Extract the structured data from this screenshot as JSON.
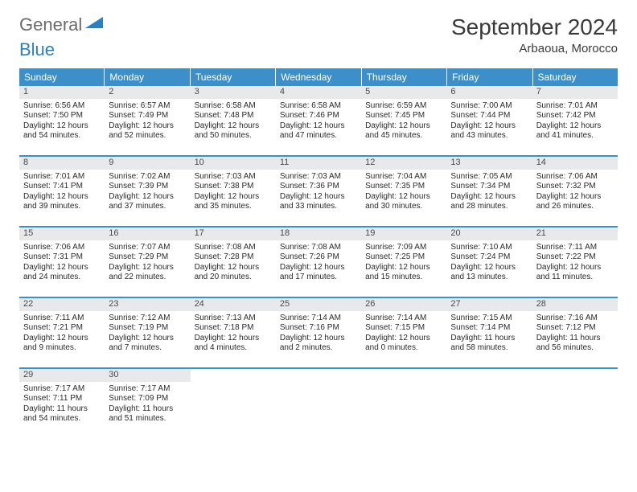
{
  "brand": {
    "part1": "General",
    "part2": "Blue"
  },
  "title": "September 2024",
  "location": "Arbaoua, Morocco",
  "colors": {
    "header_bg": "#3d8fc9",
    "header_text": "#ffffff",
    "daynum_bg": "#e7e9ea",
    "row_border": "#3d8fc9",
    "brand_gray": "#6b6b6b",
    "brand_blue": "#2d7fc1"
  },
  "columns": [
    "Sunday",
    "Monday",
    "Tuesday",
    "Wednesday",
    "Thursday",
    "Friday",
    "Saturday"
  ],
  "weeks": [
    [
      {
        "n": "1",
        "sr": "6:56 AM",
        "ss": "7:50 PM",
        "dl": "12 hours and 54 minutes."
      },
      {
        "n": "2",
        "sr": "6:57 AM",
        "ss": "7:49 PM",
        "dl": "12 hours and 52 minutes."
      },
      {
        "n": "3",
        "sr": "6:58 AM",
        "ss": "7:48 PM",
        "dl": "12 hours and 50 minutes."
      },
      {
        "n": "4",
        "sr": "6:58 AM",
        "ss": "7:46 PM",
        "dl": "12 hours and 47 minutes."
      },
      {
        "n": "5",
        "sr": "6:59 AM",
        "ss": "7:45 PM",
        "dl": "12 hours and 45 minutes."
      },
      {
        "n": "6",
        "sr": "7:00 AM",
        "ss": "7:44 PM",
        "dl": "12 hours and 43 minutes."
      },
      {
        "n": "7",
        "sr": "7:01 AM",
        "ss": "7:42 PM",
        "dl": "12 hours and 41 minutes."
      }
    ],
    [
      {
        "n": "8",
        "sr": "7:01 AM",
        "ss": "7:41 PM",
        "dl": "12 hours and 39 minutes."
      },
      {
        "n": "9",
        "sr": "7:02 AM",
        "ss": "7:39 PM",
        "dl": "12 hours and 37 minutes."
      },
      {
        "n": "10",
        "sr": "7:03 AM",
        "ss": "7:38 PM",
        "dl": "12 hours and 35 minutes."
      },
      {
        "n": "11",
        "sr": "7:03 AM",
        "ss": "7:36 PM",
        "dl": "12 hours and 33 minutes."
      },
      {
        "n": "12",
        "sr": "7:04 AM",
        "ss": "7:35 PM",
        "dl": "12 hours and 30 minutes."
      },
      {
        "n": "13",
        "sr": "7:05 AM",
        "ss": "7:34 PM",
        "dl": "12 hours and 28 minutes."
      },
      {
        "n": "14",
        "sr": "7:06 AM",
        "ss": "7:32 PM",
        "dl": "12 hours and 26 minutes."
      }
    ],
    [
      {
        "n": "15",
        "sr": "7:06 AM",
        "ss": "7:31 PM",
        "dl": "12 hours and 24 minutes."
      },
      {
        "n": "16",
        "sr": "7:07 AM",
        "ss": "7:29 PM",
        "dl": "12 hours and 22 minutes."
      },
      {
        "n": "17",
        "sr": "7:08 AM",
        "ss": "7:28 PM",
        "dl": "12 hours and 20 minutes."
      },
      {
        "n": "18",
        "sr": "7:08 AM",
        "ss": "7:26 PM",
        "dl": "12 hours and 17 minutes."
      },
      {
        "n": "19",
        "sr": "7:09 AM",
        "ss": "7:25 PM",
        "dl": "12 hours and 15 minutes."
      },
      {
        "n": "20",
        "sr": "7:10 AM",
        "ss": "7:24 PM",
        "dl": "12 hours and 13 minutes."
      },
      {
        "n": "21",
        "sr": "7:11 AM",
        "ss": "7:22 PM",
        "dl": "12 hours and 11 minutes."
      }
    ],
    [
      {
        "n": "22",
        "sr": "7:11 AM",
        "ss": "7:21 PM",
        "dl": "12 hours and 9 minutes."
      },
      {
        "n": "23",
        "sr": "7:12 AM",
        "ss": "7:19 PM",
        "dl": "12 hours and 7 minutes."
      },
      {
        "n": "24",
        "sr": "7:13 AM",
        "ss": "7:18 PM",
        "dl": "12 hours and 4 minutes."
      },
      {
        "n": "25",
        "sr": "7:14 AM",
        "ss": "7:16 PM",
        "dl": "12 hours and 2 minutes."
      },
      {
        "n": "26",
        "sr": "7:14 AM",
        "ss": "7:15 PM",
        "dl": "12 hours and 0 minutes."
      },
      {
        "n": "27",
        "sr": "7:15 AM",
        "ss": "7:14 PM",
        "dl": "11 hours and 58 minutes."
      },
      {
        "n": "28",
        "sr": "7:16 AM",
        "ss": "7:12 PM",
        "dl": "11 hours and 56 minutes."
      }
    ],
    [
      {
        "n": "29",
        "sr": "7:17 AM",
        "ss": "7:11 PM",
        "dl": "11 hours and 54 minutes."
      },
      {
        "n": "30",
        "sr": "7:17 AM",
        "ss": "7:09 PM",
        "dl": "11 hours and 51 minutes."
      },
      null,
      null,
      null,
      null,
      null
    ]
  ],
  "labels": {
    "sunrise": "Sunrise:",
    "sunset": "Sunset:",
    "daylight": "Daylight:"
  }
}
